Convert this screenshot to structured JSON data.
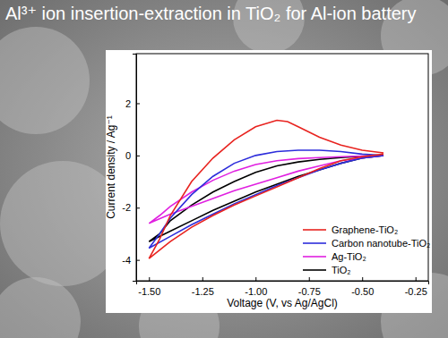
{
  "chart_data": {
    "type": "line",
    "title": "Al³⁺ ion insertion-extraction in TiO₂ for Al-ion battery",
    "x_label": "Voltage (V, vs Ag/AgCl)",
    "y_label": "Current density / Ag⁻¹",
    "xlim": [
      -1.56,
      -0.19
    ],
    "ylim": [
      -4.8,
      3.9
    ],
    "xticks": [
      {
        "value": -1.5,
        "label": "-1.50"
      },
      {
        "value": -1.25,
        "label": "-1.25"
      },
      {
        "value": -1.0,
        "label": "-1.00"
      },
      {
        "value": -0.75,
        "label": "-0.75"
      },
      {
        "value": -0.5,
        "label": "-0.50"
      },
      {
        "value": -0.25,
        "label": "-0.25"
      }
    ],
    "yticks": [
      -4,
      -2,
      0,
      2
    ],
    "grid": false,
    "legend": "lower right",
    "series": [
      {
        "name": "Graphene-TiO₂",
        "color": "#e8231f",
        "x": [
          -0.4,
          -0.5,
          -0.6,
          -0.7,
          -0.8,
          -0.9,
          -1.0,
          -1.1,
          -1.2,
          -1.3,
          -1.4,
          -1.5,
          -1.45,
          -1.4,
          -1.3,
          -1.2,
          -1.1,
          -1.0,
          -0.9,
          -0.85,
          -0.8,
          -0.7,
          -0.6,
          -0.5,
          -0.4
        ],
        "values": [
          0.05,
          -0.05,
          -0.2,
          -0.5,
          -0.85,
          -1.2,
          -1.55,
          -1.9,
          -2.3,
          -2.75,
          -3.3,
          -3.95,
          -3.2,
          -2.3,
          -1.0,
          -0.1,
          0.6,
          1.1,
          1.35,
          1.3,
          1.1,
          0.7,
          0.4,
          0.2,
          0.1
        ]
      },
      {
        "name": "Carbon nanotube-TiO₂",
        "color": "#2d2ddb",
        "x": [
          -0.4,
          -0.5,
          -0.6,
          -0.7,
          -0.8,
          -0.9,
          -1.0,
          -1.1,
          -1.2,
          -1.3,
          -1.4,
          -1.5,
          -1.45,
          -1.4,
          -1.3,
          -1.2,
          -1.1,
          -1.0,
          -0.9,
          -0.8,
          -0.7,
          -0.6,
          -0.5,
          -0.4
        ],
        "values": [
          0.0,
          -0.1,
          -0.3,
          -0.55,
          -0.85,
          -1.15,
          -1.5,
          -1.85,
          -2.25,
          -2.65,
          -3.1,
          -3.55,
          -3.0,
          -2.4,
          -1.5,
          -0.8,
          -0.3,
          0.0,
          0.15,
          0.2,
          0.2,
          0.15,
          0.05,
          0.0
        ]
      },
      {
        "name": "Ag-TiO₂",
        "color": "#e020e0",
        "x": [
          -0.4,
          -0.5,
          -0.6,
          -0.7,
          -0.8,
          -0.9,
          -1.0,
          -1.1,
          -1.2,
          -1.3,
          -1.4,
          -1.5,
          -1.45,
          -1.4,
          -1.3,
          -1.2,
          -1.1,
          -1.0,
          -0.9,
          -0.8,
          -0.7,
          -0.6,
          -0.5,
          -0.4
        ],
        "values": [
          0.0,
          -0.1,
          -0.2,
          -0.4,
          -0.6,
          -0.85,
          -1.1,
          -1.35,
          -1.65,
          -1.95,
          -2.25,
          -2.6,
          -2.3,
          -1.95,
          -1.4,
          -0.95,
          -0.6,
          -0.35,
          -0.2,
          -0.12,
          -0.08,
          -0.05,
          -0.02,
          0.0
        ]
      },
      {
        "name": "TiO₂",
        "color": "#000000",
        "x": [
          -0.4,
          -0.5,
          -0.6,
          -0.7,
          -0.8,
          -0.9,
          -1.0,
          -1.1,
          -1.2,
          -1.3,
          -1.4,
          -1.5,
          -1.45,
          -1.4,
          -1.3,
          -1.2,
          -1.1,
          -1.0,
          -0.9,
          -0.8,
          -0.7,
          -0.6,
          -0.5,
          -0.4
        ],
        "values": [
          0.0,
          -0.1,
          -0.3,
          -0.55,
          -0.8,
          -1.1,
          -1.4,
          -1.75,
          -2.1,
          -2.5,
          -2.9,
          -3.3,
          -3.0,
          -2.5,
          -1.9,
          -1.4,
          -1.0,
          -0.65,
          -0.4,
          -0.25,
          -0.15,
          -0.08,
          -0.03,
          0.0
        ]
      }
    ]
  }
}
